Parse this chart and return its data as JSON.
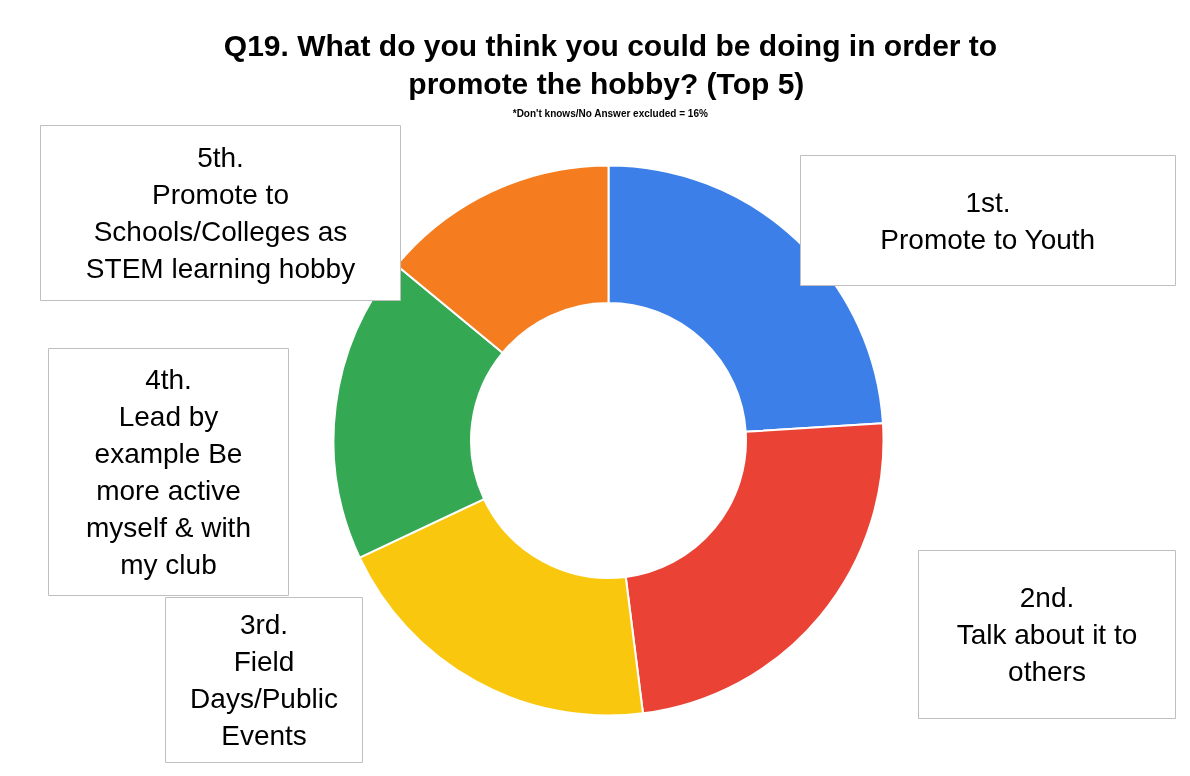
{
  "chart_data": {
    "type": "donut",
    "title": "Q19. What do you think you could be doing in order to promote the hobby?  (Top 5)",
    "subtitle": "*Don't knows/No Answer excluded = 16%",
    "categories": [
      "1st. Promote to Youth",
      "2nd. Talk about it to others",
      "3rd. Field Days/Public Events",
      "4th. Lead by example Be more active myself & with my club",
      "5th. Promote to Schools/Colleges as STEM learning hobby"
    ],
    "values": [
      24,
      24,
      20,
      18,
      14
    ],
    "colors": [
      "#3d7fe8",
      "#ea4335",
      "#f9c80e",
      "#34a853",
      "#f57c1f"
    ]
  }
}
